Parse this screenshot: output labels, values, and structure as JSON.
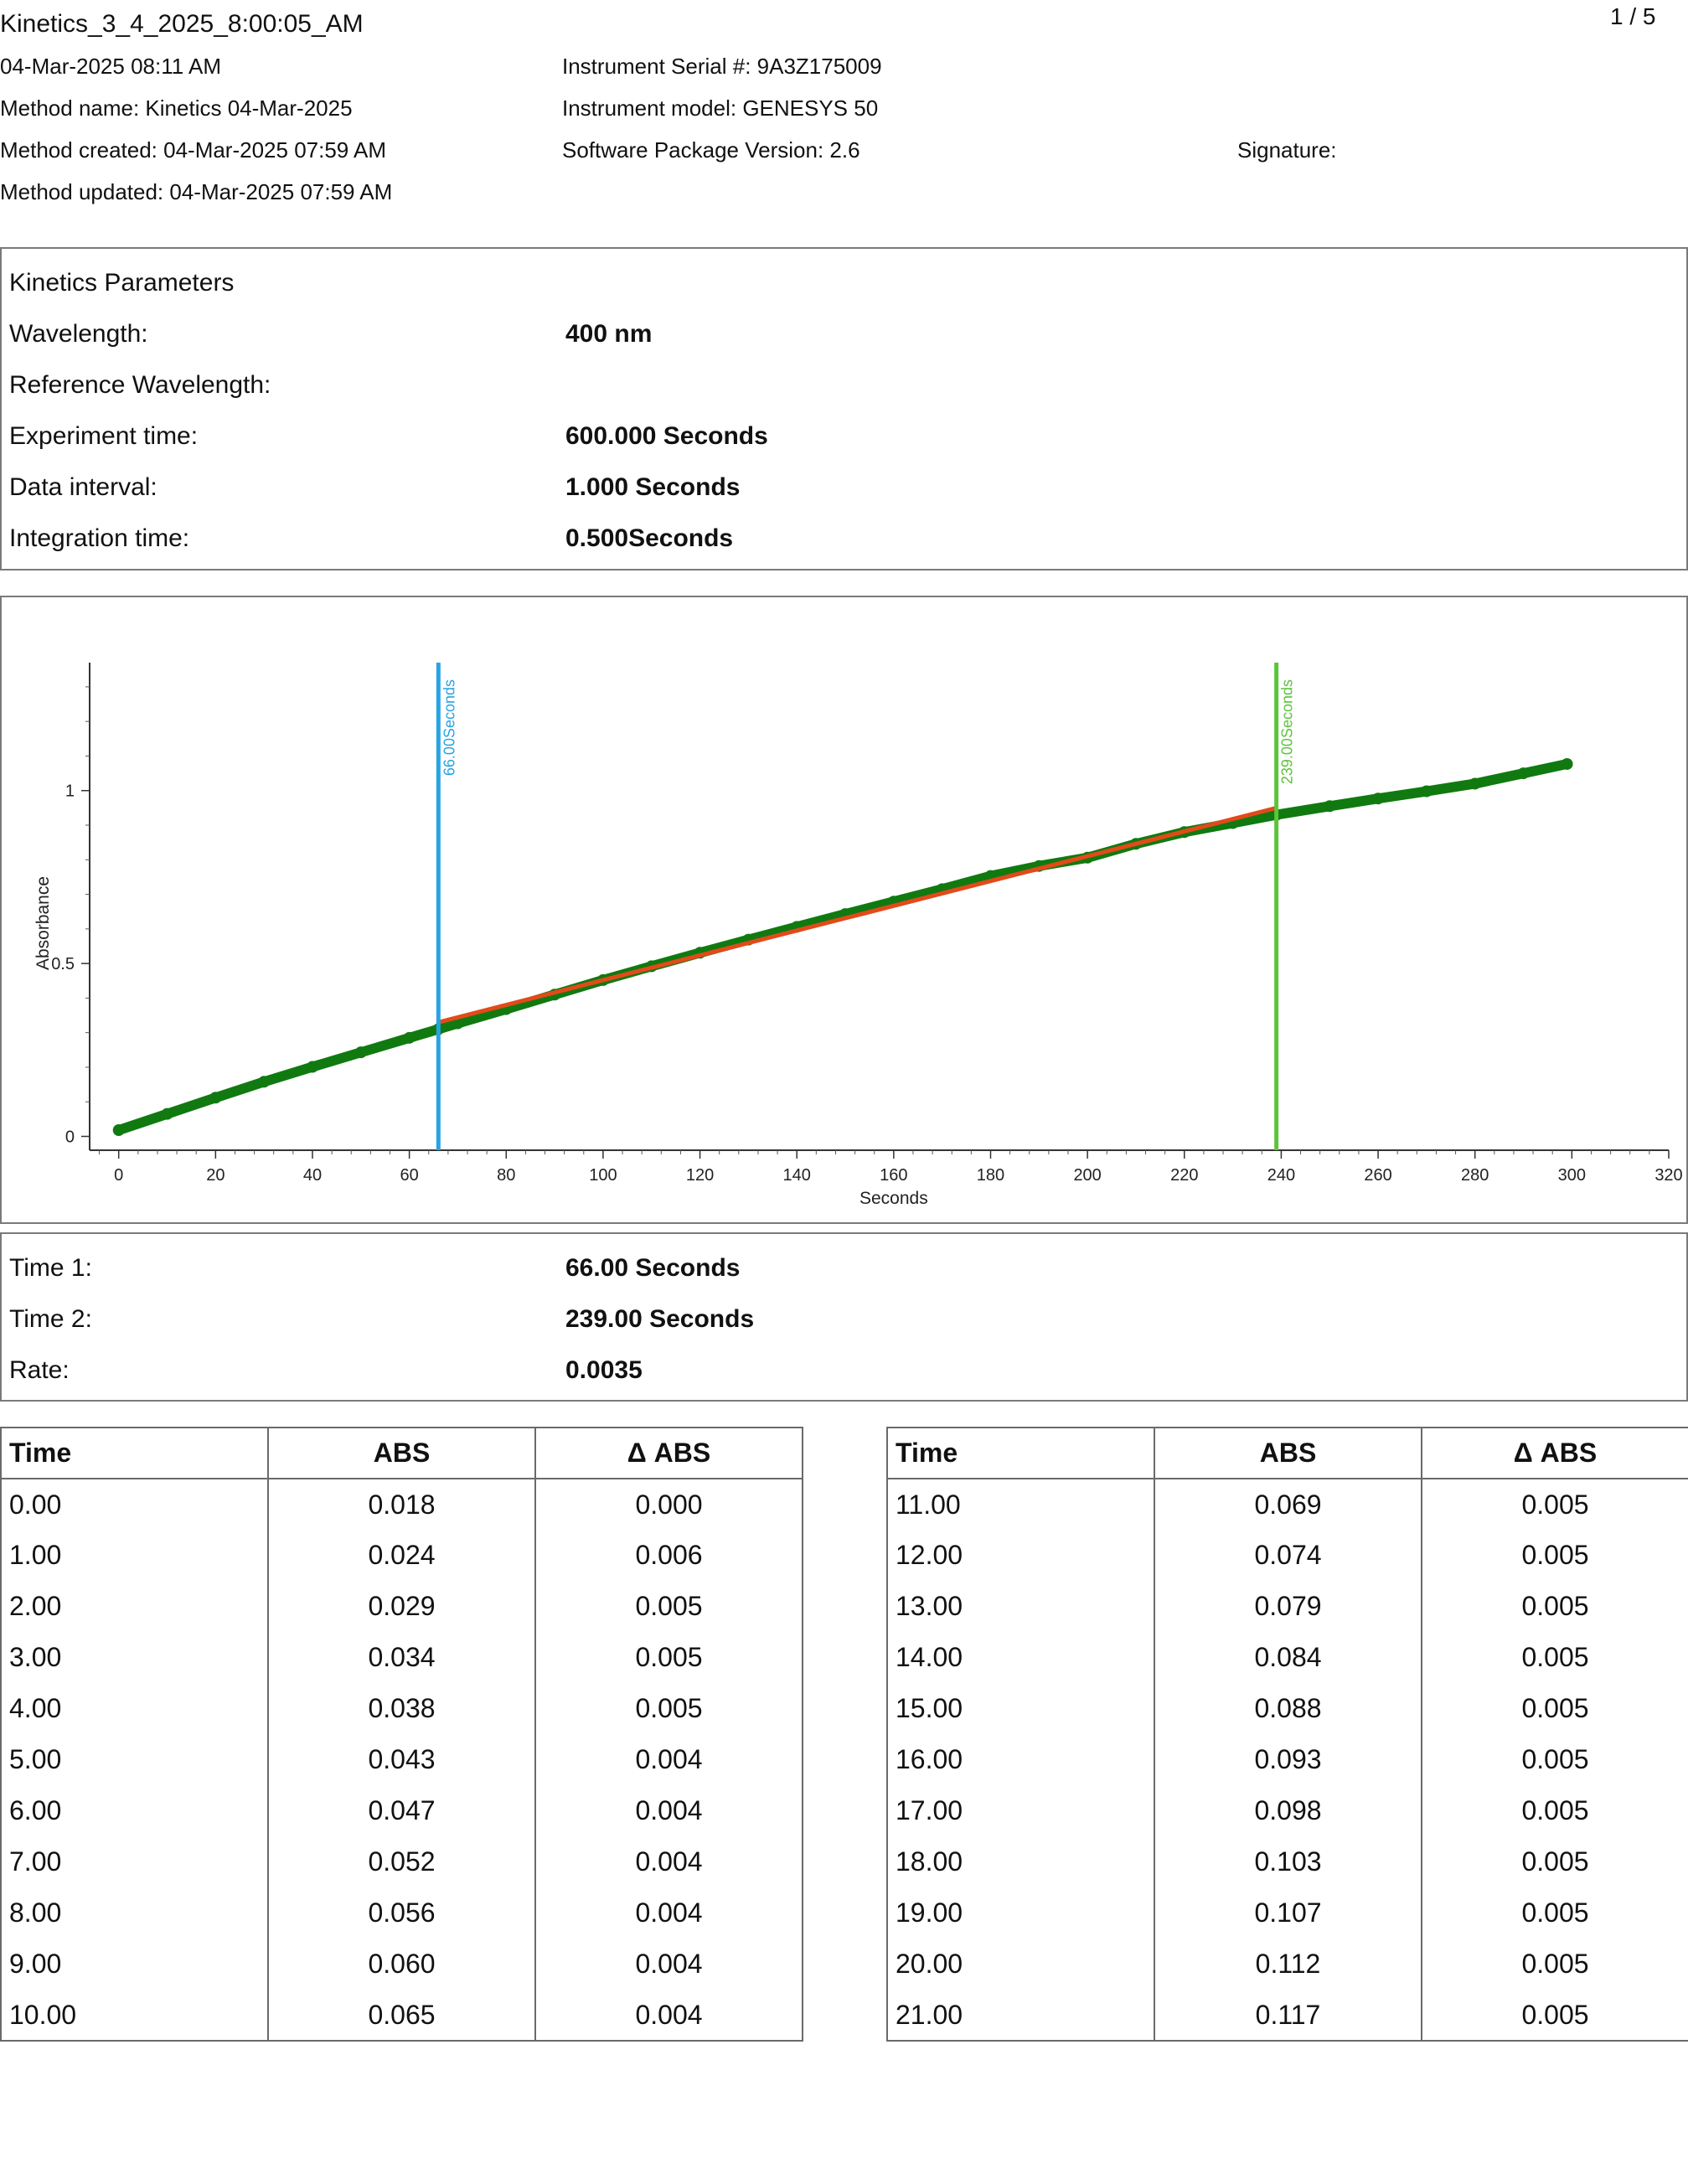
{
  "header": {
    "title": "Kinetics_3_4_2025_8:00:05_AM",
    "page": "1 / 5",
    "datetime": "04-Mar-2025 08:11 AM",
    "method_name": "Method name: Kinetics 04-Mar-2025",
    "method_created": "Method created: 04-Mar-2025 07:59 AM",
    "method_updated": "Method updated: 04-Mar-2025 07:59 AM",
    "serial": "Instrument Serial #: 9A3Z175009",
    "model": "Instrument model: GENESYS 50",
    "software": "Software Package Version: 2.6",
    "signature": "Signature:"
  },
  "params": {
    "heading": "Kinetics Parameters",
    "rows": [
      {
        "label": "Wavelength:",
        "value": "400 nm"
      },
      {
        "label": "Reference Wavelength:",
        "value": ""
      },
      {
        "label": "Experiment time:",
        "value": "600.000 Seconds"
      },
      {
        "label": "Data interval:",
        "value": "1.000 Seconds"
      },
      {
        "label": "Integration time:",
        "value": "0.500Seconds"
      }
    ]
  },
  "chart_data": {
    "type": "line",
    "xlabel": "Seconds",
    "ylabel": "Absorbance",
    "xlim": [
      -6,
      320
    ],
    "ylim": [
      -0.04,
      1.37
    ],
    "x_ticks": [
      0,
      20,
      40,
      60,
      80,
      100,
      120,
      140,
      160,
      180,
      200,
      220,
      240,
      260,
      280,
      300,
      320
    ],
    "y_ticks": [
      0,
      0.5,
      1
    ],
    "y_tick_labels": [
      "0",
      "0.5",
      "1"
    ],
    "grid": false,
    "series": [
      {
        "color": "#107a10",
        "x": [
          0,
          10,
          20,
          30,
          40,
          50,
          60,
          66,
          70,
          80,
          90,
          100,
          110,
          120,
          130,
          140,
          150,
          160,
          170,
          180,
          190,
          200,
          210,
          220,
          230,
          239,
          250,
          260,
          270,
          280,
          290,
          299
        ],
        "values": [
          0.018,
          0.065,
          0.112,
          0.158,
          0.201,
          0.243,
          0.285,
          0.31,
          0.327,
          0.368,
          0.41,
          0.452,
          0.492,
          0.531,
          0.569,
          0.606,
          0.643,
          0.679,
          0.715,
          0.753,
          0.782,
          0.806,
          0.846,
          0.88,
          0.906,
          0.93,
          0.955,
          0.977,
          0.998,
          1.02,
          1.05,
          1.077
        ]
      },
      {
        "color": "#e24a1a",
        "x": [
          66,
          239
        ],
        "values": [
          0.33,
          0.95
        ]
      }
    ],
    "markers": [
      {
        "x": 66,
        "label": "66.00Seconds",
        "color": "#27a4e3"
      },
      {
        "x": 239,
        "label": "239.00Seconds",
        "color": "#5cc43b"
      }
    ]
  },
  "results": {
    "rows": [
      {
        "label": "Time 1:",
        "value": "66.00 Seconds"
      },
      {
        "label": "Time 2:",
        "value": "239.00 Seconds"
      },
      {
        "label": "Rate:",
        "value": "0.0035"
      }
    ]
  },
  "table": {
    "headers": [
      "Time",
      "ABS",
      "Δ ABS"
    ],
    "left": [
      [
        "0.00",
        "0.018",
        "0.000"
      ],
      [
        "1.00",
        "0.024",
        "0.006"
      ],
      [
        "2.00",
        "0.029",
        "0.005"
      ],
      [
        "3.00",
        "0.034",
        "0.005"
      ],
      [
        "4.00",
        "0.038",
        "0.005"
      ],
      [
        "5.00",
        "0.043",
        "0.004"
      ],
      [
        "6.00",
        "0.047",
        "0.004"
      ],
      [
        "7.00",
        "0.052",
        "0.004"
      ],
      [
        "8.00",
        "0.056",
        "0.004"
      ],
      [
        "9.00",
        "0.060",
        "0.004"
      ],
      [
        "10.00",
        "0.065",
        "0.004"
      ]
    ],
    "right": [
      [
        "11.00",
        "0.069",
        "0.005"
      ],
      [
        "12.00",
        "0.074",
        "0.005"
      ],
      [
        "13.00",
        "0.079",
        "0.005"
      ],
      [
        "14.00",
        "0.084",
        "0.005"
      ],
      [
        "15.00",
        "0.088",
        "0.005"
      ],
      [
        "16.00",
        "0.093",
        "0.005"
      ],
      [
        "17.00",
        "0.098",
        "0.005"
      ],
      [
        "18.00",
        "0.103",
        "0.005"
      ],
      [
        "19.00",
        "0.107",
        "0.005"
      ],
      [
        "20.00",
        "0.112",
        "0.005"
      ],
      [
        "21.00",
        "0.117",
        "0.005"
      ]
    ]
  }
}
